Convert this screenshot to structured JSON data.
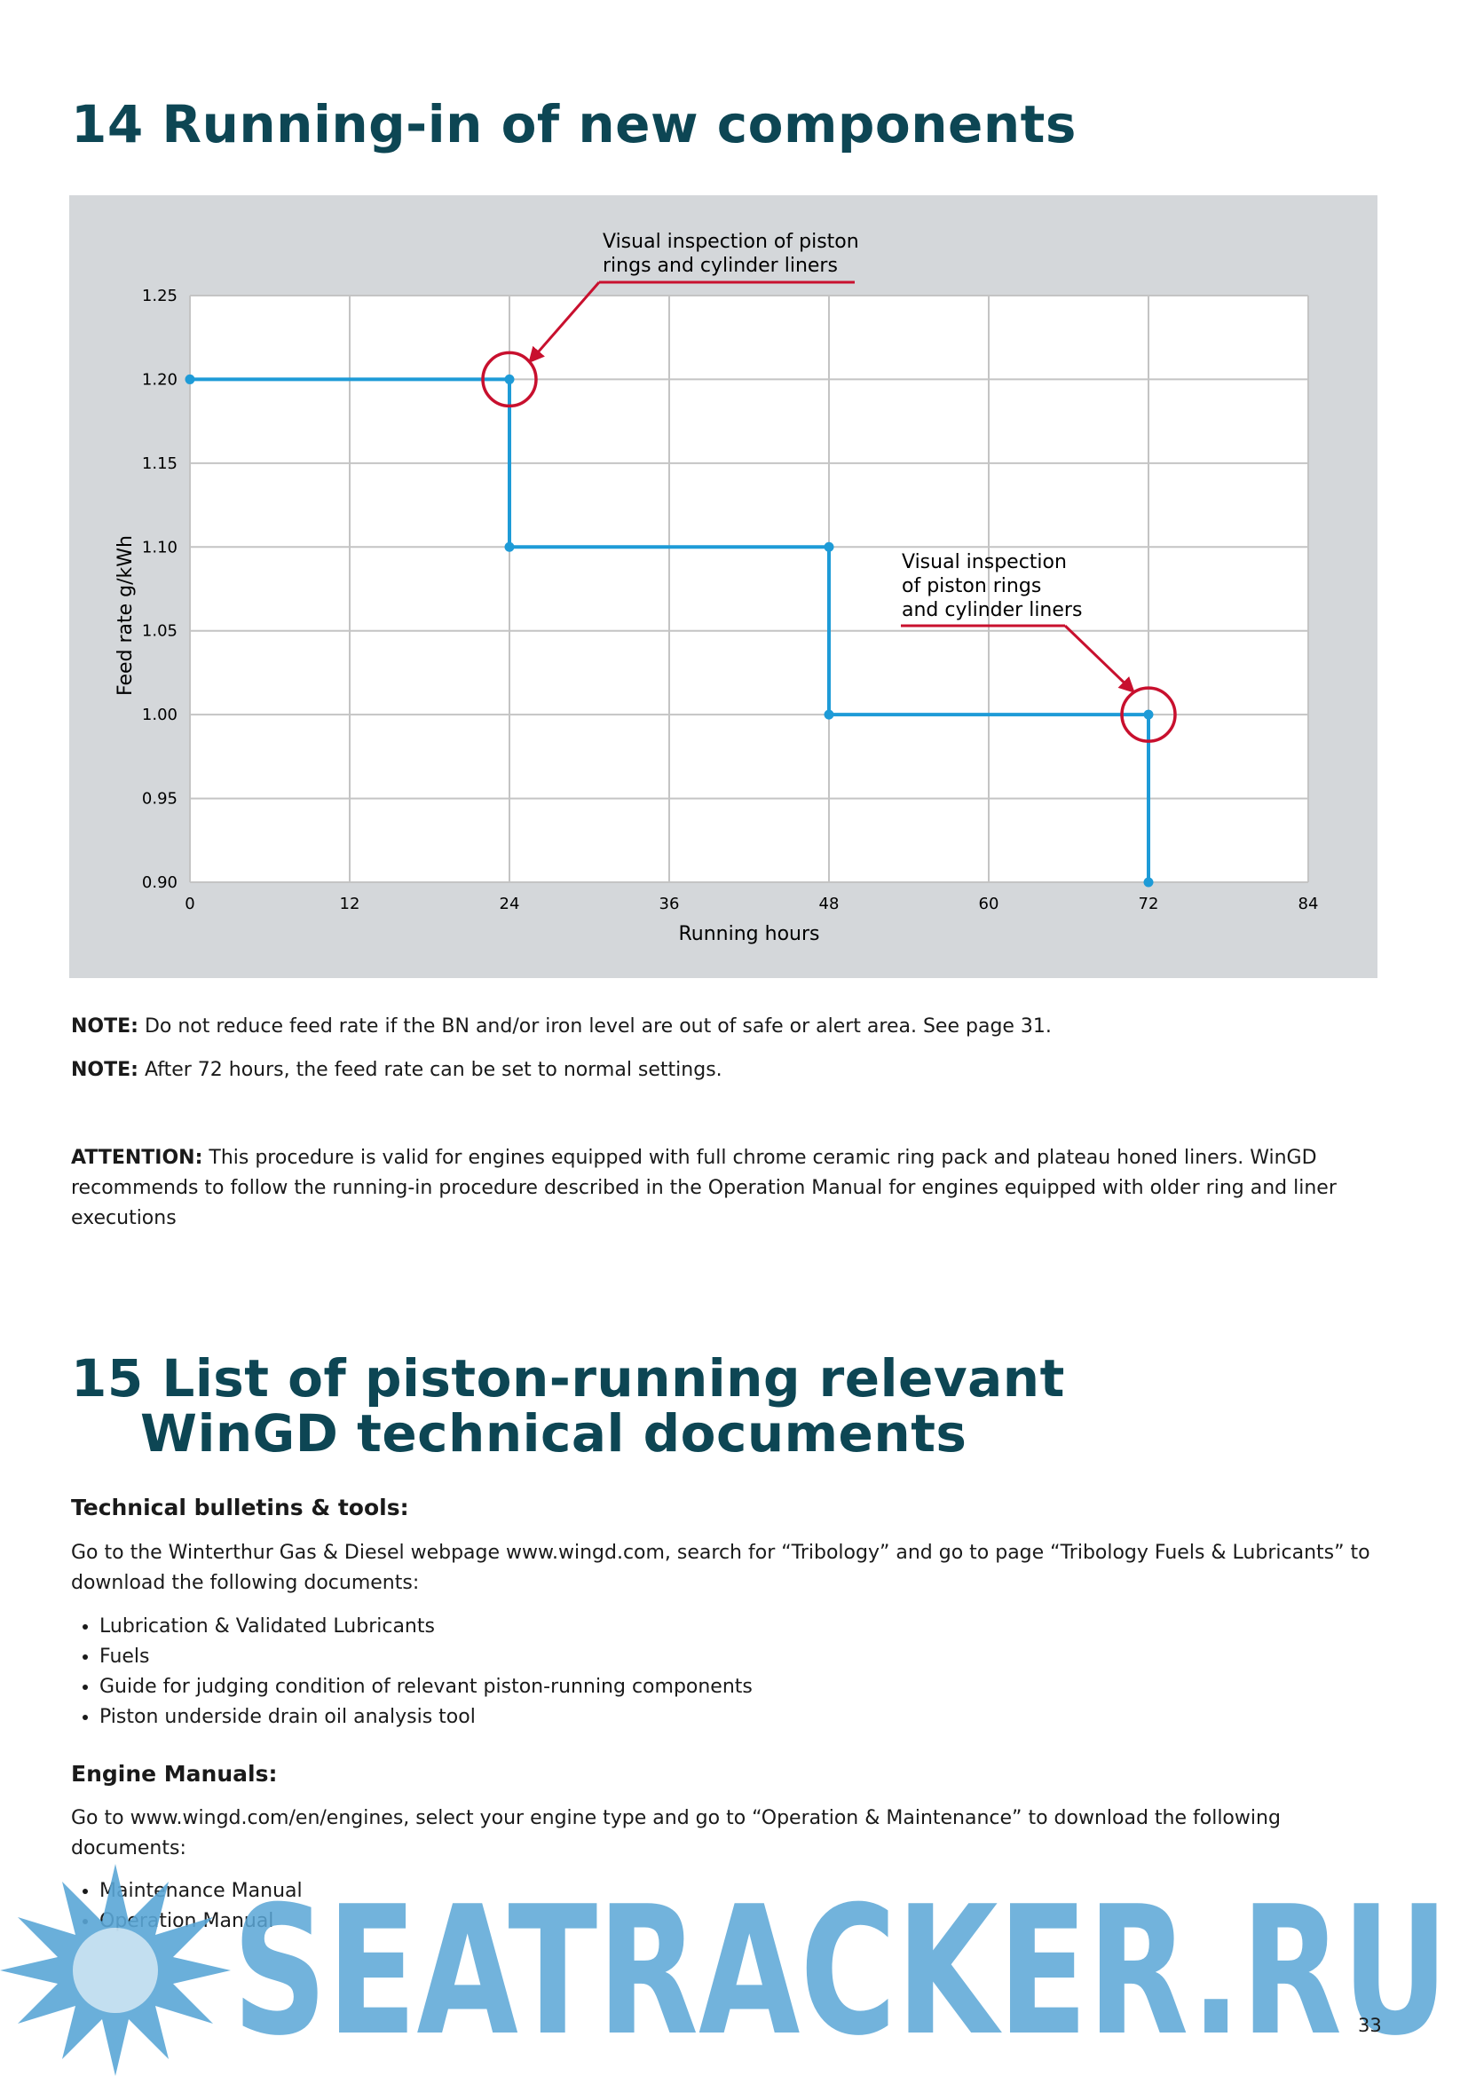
{
  "section14": {
    "title": "14 Running-in of new components"
  },
  "chart_data": {
    "type": "line",
    "x_label": "Running hours",
    "y_label": "Feed rate g/kWh",
    "x": [
      0,
      24,
      24,
      48,
      48,
      72,
      72
    ],
    "series": [
      {
        "color": "#1e9bd7",
        "values": [
          1.2,
          1.2,
          1.1,
          1.1,
          1.0,
          1.0,
          0.9
        ]
      }
    ],
    "xlim": [
      0,
      84
    ],
    "xticks": [
      0,
      12,
      24,
      36,
      48,
      60,
      72,
      84
    ],
    "ylim": [
      0.9,
      1.25
    ],
    "yticks": [
      {
        "value": 0.9,
        "label": "0.90"
      },
      0.95,
      {
        "value": 1.0,
        "label": "1.00"
      },
      1.05,
      {
        "value": 1.1,
        "label": "1.10"
      },
      1.15,
      {
        "value": 1.2,
        "label": "1.20"
      },
      1.25
    ],
    "grid": true,
    "annotations": [
      {
        "lines": [
          "Visual inspection of piston",
          "rings and cylinder liners"
        ],
        "x": 24,
        "y": 1.2
      },
      {
        "lines": [
          "Visual inspection",
          "of piston rings",
          "and cylinder liners"
        ],
        "x": 72,
        "y": 1.0
      }
    ]
  },
  "notes": [
    {
      "label": "NOTE:",
      "text": "Do not reduce feed rate if the BN and/or iron level are out of safe or alert area. See page 31."
    },
    {
      "label": "NOTE:",
      "text": "After 72 hours, the feed rate can be set to normal settings."
    },
    {
      "label": "ATTENTION:",
      "text": "This procedure is valid for engines equipped with full chrome ceramic ring pack and plateau honed liners. WinGD recommends to follow the running-in procedure described in the Operation Manual for engines equipped with older ring and liner executions"
    }
  ],
  "section15": {
    "title_lines": [
      "15 List of piston-running relevant",
      "WinGD technical documents"
    ],
    "blocks": [
      {
        "heading": "Technical bulletins & tools:",
        "text": "Go to the Winterthur Gas & Diesel webpage www.wingd.com, search for “Tribology” and go to page “Tribology Fuels & Lubricants” to download the following documents:",
        "items": [
          "Lubrication & Validated Lubricants",
          "Fuels",
          "Guide for judging condition of relevant piston-running components",
          "Piston underside drain oil analysis tool"
        ]
      },
      {
        "heading": "Engine Manuals:",
        "text": "Go to www.wingd.com/en/engines, select your engine type and go to “Operation & Maintenance” to download the following documents:",
        "items": [
          "Maintenance Manual",
          "Operation Manual"
        ]
      }
    ]
  },
  "watermark": "SEATRACKER.RU",
  "page_number": "33"
}
